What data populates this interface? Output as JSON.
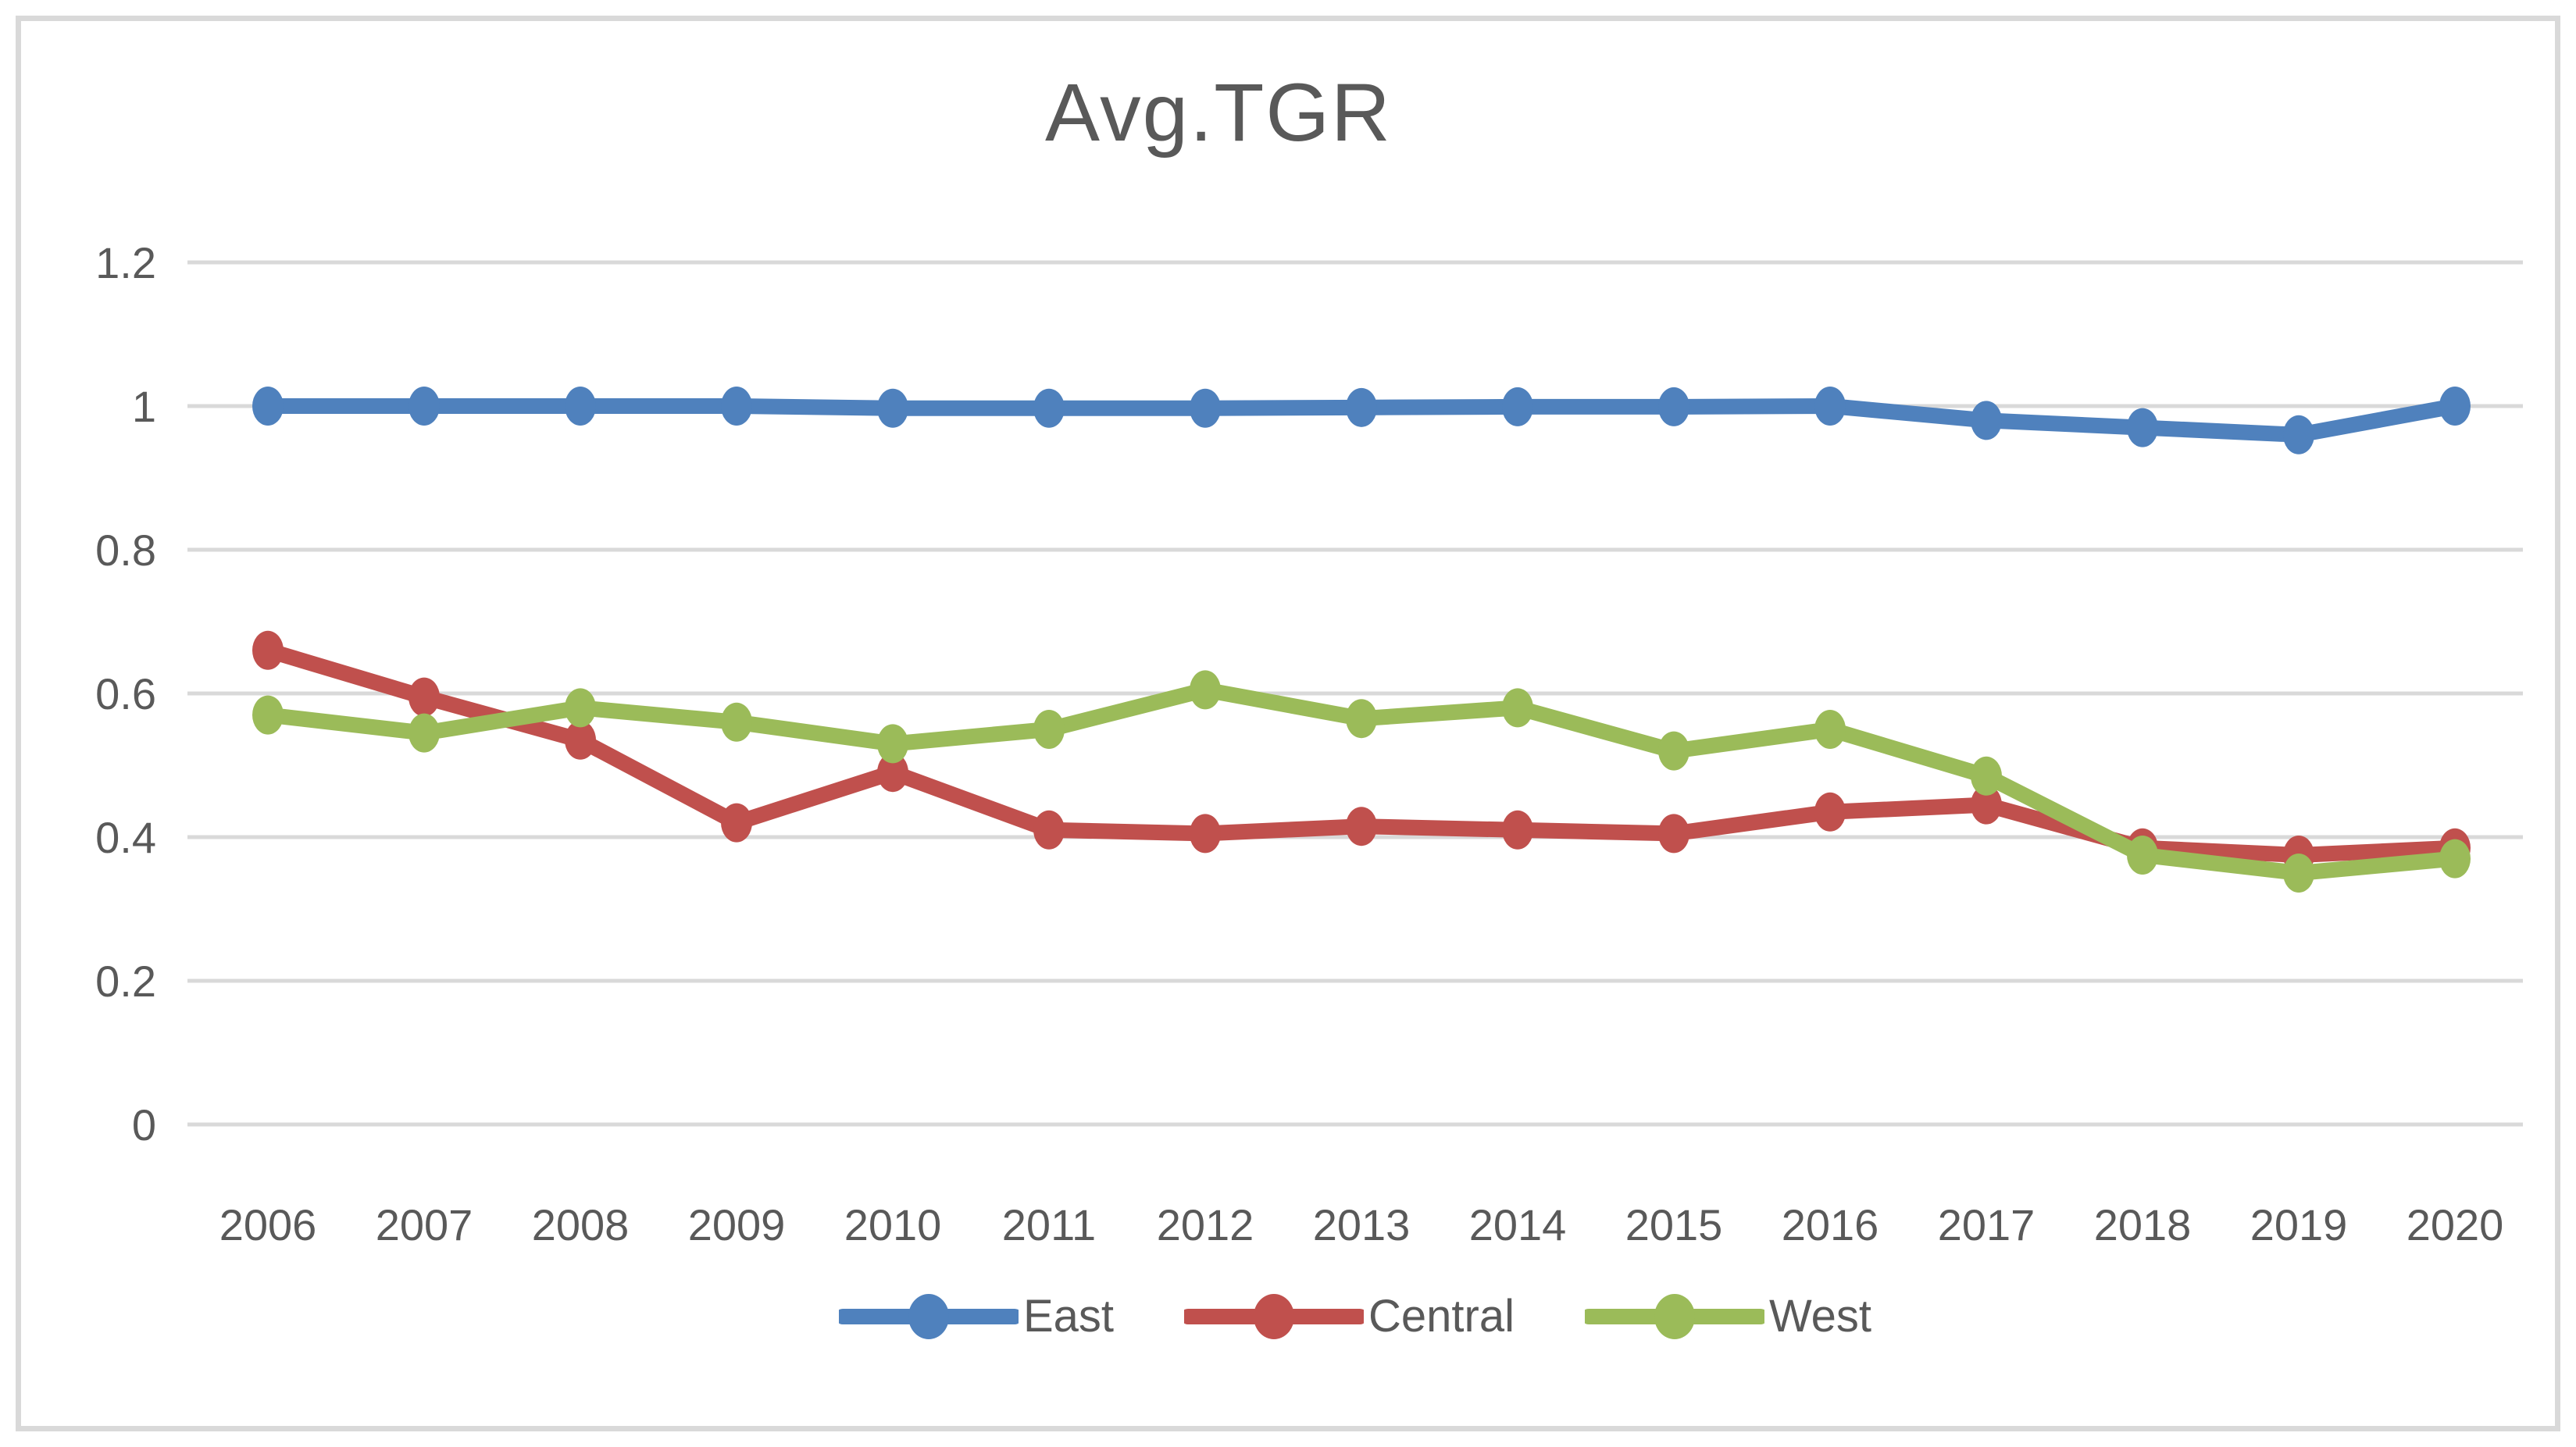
{
  "title": "Avg.TGR",
  "chart_data": {
    "type": "line",
    "title": "Avg.TGR",
    "x": [
      2006,
      2007,
      2008,
      2009,
      2010,
      2011,
      2012,
      2013,
      2014,
      2015,
      2016,
      2017,
      2018,
      2019,
      2020
    ],
    "series": [
      {
        "name": "East",
        "color": "#4F81BD",
        "values": [
          1.0,
          1.0,
          1.0,
          1.0,
          0.997,
          0.997,
          0.997,
          0.998,
          0.999,
          0.999,
          1.0,
          0.98,
          0.97,
          0.96,
          1.0
        ]
      },
      {
        "name": "Central",
        "color": "#C0504D",
        "values": [
          0.66,
          0.595,
          0.535,
          0.42,
          0.49,
          0.41,
          0.405,
          0.415,
          0.41,
          0.405,
          0.435,
          0.445,
          0.385,
          0.375,
          0.385
        ]
      },
      {
        "name": "West",
        "color": "#9BBB59",
        "values": [
          0.57,
          0.545,
          0.58,
          0.56,
          0.53,
          0.55,
          0.605,
          0.565,
          0.58,
          0.52,
          0.55,
          0.485,
          0.375,
          0.35,
          0.37
        ]
      }
    ],
    "xlabel": "",
    "ylabel": "",
    "ylim": [
      0,
      1.2
    ],
    "yticks": [
      0,
      0.2,
      0.4,
      0.6,
      0.8,
      1,
      1.2
    ],
    "ytick_labels": [
      "0",
      "0.2",
      "0.4",
      "0.6",
      "0.8",
      "1",
      "1.2"
    ],
    "grid": true,
    "legend_position": "bottom",
    "text_color": "#595959",
    "grid_color": "#D9D9D9",
    "background": "#FFFFFF",
    "frame_border_color": "#D9D9D9"
  }
}
